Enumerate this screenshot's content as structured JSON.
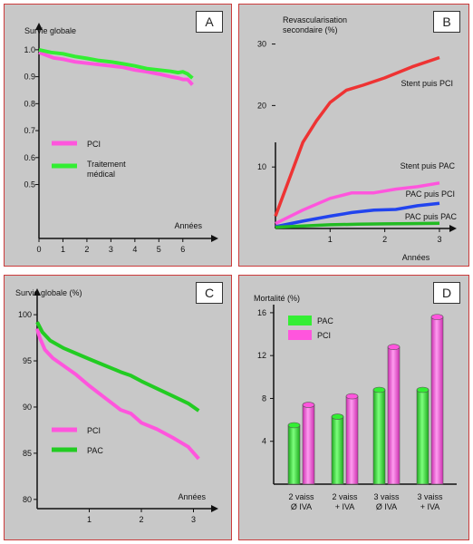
{
  "colors": {
    "panel_bg": "#c8c8c8",
    "border": "#cc3b3b",
    "pci": "#ff55dd",
    "medical": "#33ee33",
    "pac": "#22cc22",
    "stent_pci": "#ee3333",
    "stent_pac": "#ff55dd",
    "pac_pci": "#2244ee",
    "pac_pac": "#22bb22"
  },
  "chart_data": [
    {
      "panel": "A",
      "type": "line",
      "ylabel": "Survie globale",
      "xlabel": "Années",
      "xlim": [
        0,
        6.5
      ],
      "ylim": [
        0.3,
        1.05
      ],
      "xticks": [
        "0",
        "1",
        "2",
        "3",
        "4",
        "5",
        "6"
      ],
      "yticks": [
        "0.5",
        "0.6",
        "0.7",
        "0.8",
        "0.9",
        "1.0"
      ],
      "series": [
        {
          "name": "PCI",
          "color": "#ff55dd",
          "x": [
            0,
            0.3,
            0.6,
            1.0,
            1.5,
            2.0,
            2.5,
            3.0,
            3.5,
            4.0,
            4.5,
            5.0,
            5.5,
            5.8,
            6.0,
            6.2,
            6.4
          ],
          "y": [
            0.99,
            0.98,
            0.97,
            0.965,
            0.955,
            0.95,
            0.945,
            0.94,
            0.935,
            0.925,
            0.918,
            0.91,
            0.9,
            0.895,
            0.89,
            0.89,
            0.87
          ]
        },
        {
          "name": "Traitement\nmédical",
          "color": "#33ee33",
          "x": [
            0,
            0.5,
            1.0,
            1.5,
            2.0,
            2.5,
            3.0,
            3.5,
            4.0,
            4.5,
            5.0,
            5.5,
            5.8,
            6.0,
            6.2,
            6.4
          ],
          "y": [
            1.0,
            0.99,
            0.985,
            0.975,
            0.968,
            0.96,
            0.955,
            0.948,
            0.94,
            0.93,
            0.925,
            0.92,
            0.915,
            0.918,
            0.91,
            0.895
          ]
        }
      ]
    },
    {
      "panel": "B",
      "type": "line",
      "ylabel": "Revascularisation\nsecondaire (%)",
      "xlabel": "Années",
      "xlim": [
        0,
        3.15
      ],
      "ylim": [
        0,
        32
      ],
      "xticks": [
        "1",
        "2",
        "3"
      ],
      "yticks": [
        "10",
        "20",
        "30"
      ],
      "series": [
        {
          "name": "Stent puis PCI",
          "color": "#ee3333",
          "x": [
            0,
            0.25,
            0.5,
            0.75,
            1.0,
            1.3,
            1.6,
            2.0,
            2.5,
            3.0
          ],
          "y": [
            2,
            8,
            14,
            17.5,
            20.5,
            22.5,
            23.3,
            24.5,
            26.3,
            27.8
          ]
        },
        {
          "name": "Stent puis PAC",
          "color": "#ff55dd",
          "x": [
            0,
            0.5,
            1.0,
            1.4,
            1.8,
            2.2,
            2.6,
            3.0
          ],
          "y": [
            0.8,
            3,
            4.9,
            5.8,
            5.8,
            6.4,
            6.8,
            7.4
          ]
        },
        {
          "name": "PAC puis PCI",
          "color": "#2244ee",
          "x": [
            0,
            0.5,
            1.0,
            1.4,
            1.8,
            2.2,
            2.6,
            3.0
          ],
          "y": [
            0.3,
            1.2,
            2.0,
            2.6,
            3.0,
            3.1,
            3.7,
            4.1
          ]
        },
        {
          "name": "PAC puis PAC",
          "color": "#22bb22",
          "x": [
            0,
            0.5,
            1.0,
            1.5,
            2.0,
            2.5,
            3.0
          ],
          "y": [
            0.2,
            0.4,
            0.6,
            0.7,
            0.75,
            0.8,
            0.85
          ]
        }
      ]
    },
    {
      "panel": "C",
      "type": "line",
      "ylabel": "Survie globale (%)",
      "xlabel": "Années",
      "xlim": [
        0,
        3.2
      ],
      "ylim": [
        79,
        100.5
      ],
      "xticks": [
        "1",
        "2",
        "3"
      ],
      "yticks": [
        "80",
        "85",
        "90",
        "95",
        "100"
      ],
      "series": [
        {
          "name": "PCI",
          "color": "#ff55dd",
          "x": [
            0,
            0.05,
            0.15,
            0.3,
            0.5,
            0.75,
            1.0,
            1.3,
            1.6,
            1.8,
            2.0,
            2.3,
            2.6,
            2.9,
            3.1
          ],
          "y": [
            98.5,
            97.5,
            96.2,
            95.3,
            94.5,
            93.5,
            92.3,
            91.0,
            89.7,
            89.3,
            88.3,
            87.6,
            86.7,
            85.7,
            84.4
          ]
        },
        {
          "name": "PAC",
          "color": "#22cc22",
          "x": [
            0,
            0.1,
            0.25,
            0.5,
            0.75,
            1.0,
            1.3,
            1.6,
            1.8,
            2.0,
            2.3,
            2.6,
            2.9,
            3.1
          ],
          "y": [
            99.2,
            98.1,
            97.2,
            96.4,
            95.8,
            95.2,
            94.5,
            93.8,
            93.4,
            92.8,
            92.0,
            91.2,
            90.4,
            89.6
          ]
        }
      ]
    },
    {
      "panel": "D",
      "type": "bar",
      "ylabel": "Mortalité (%)",
      "ylim": [
        0,
        16.5
      ],
      "yticks": [
        "4",
        "8",
        "12",
        "16"
      ],
      "categories": [
        "2 vaiss\nØ IVA",
        "2 vaiss\n+ IVA",
        "3 vaiss\nØ IVA",
        "3 vaiss\n+ IVA"
      ],
      "series": [
        {
          "name": "PAC",
          "color": "#33ee33",
          "values": [
            5.5,
            6.3,
            8.8,
            8.8
          ]
        },
        {
          "name": "PCI",
          "color": "#ff55dd",
          "values": [
            7.4,
            8.2,
            12.8,
            15.6
          ]
        }
      ]
    }
  ],
  "panel_letters": [
    "A",
    "B",
    "C",
    "D"
  ]
}
